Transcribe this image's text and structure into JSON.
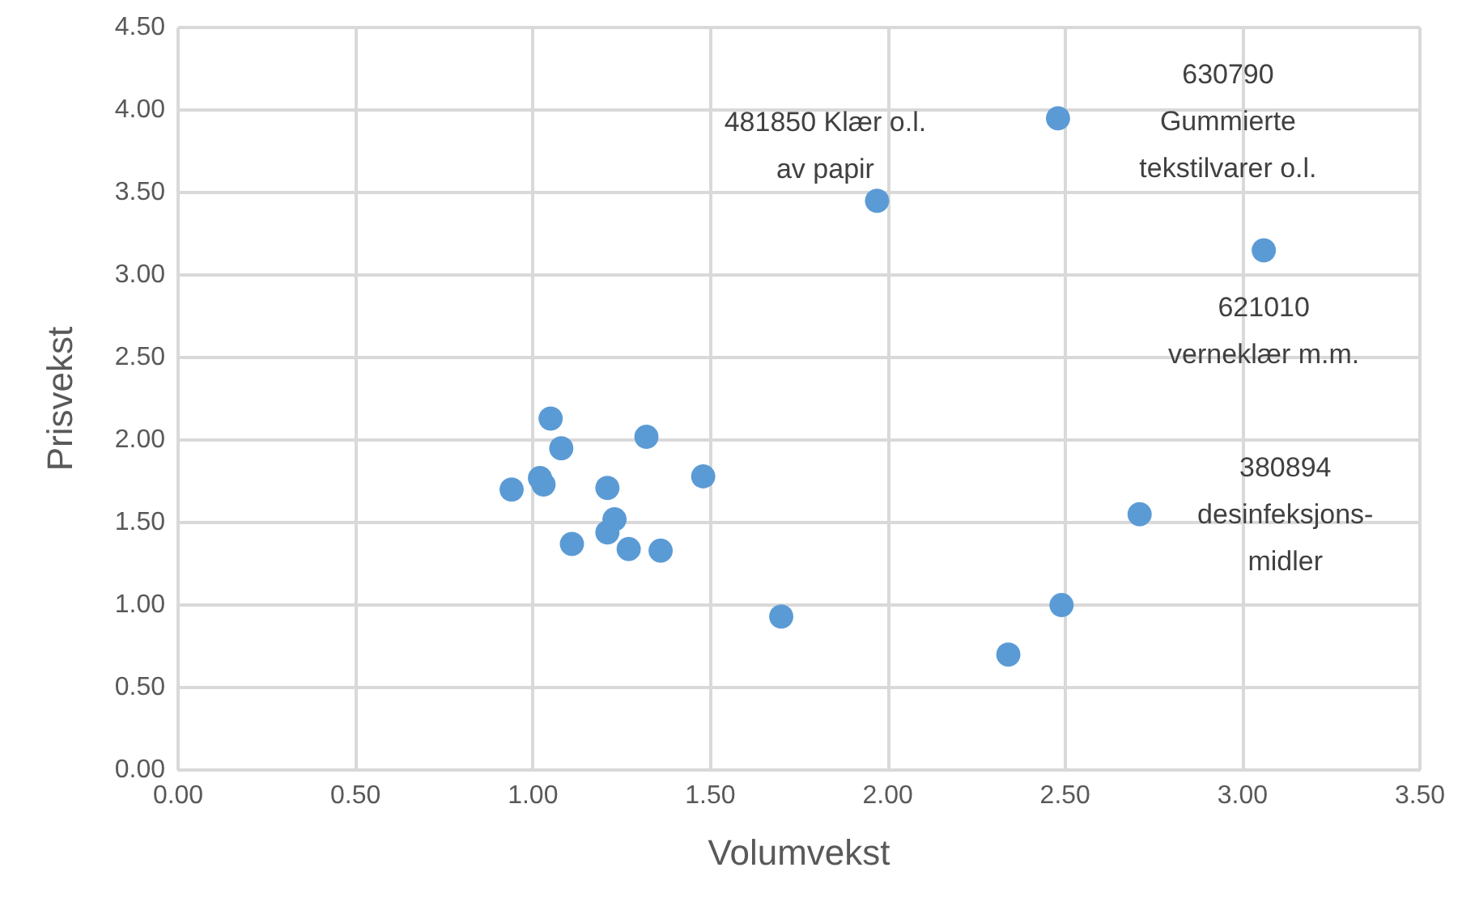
{
  "chart_data": {
    "type": "scatter",
    "xlabel": "Volumvekst",
    "ylabel": "Prisvekst",
    "x": [
      0.94,
      1.02,
      1.03,
      1.05,
      1.08,
      1.11,
      1.21,
      1.21,
      1.23,
      1.27,
      1.32,
      1.36,
      1.48,
      1.7,
      1.97,
      2.34,
      2.48,
      2.49,
      2.71,
      3.06
    ],
    "series": [
      {
        "color": "#5b9bd5",
        "values": [
          1.7,
          1.77,
          1.73,
          2.13,
          1.95,
          1.37,
          1.71,
          1.44,
          1.52,
          1.34,
          2.02,
          1.33,
          1.78,
          0.93,
          3.45,
          0.7,
          3.95,
          1.0,
          1.55,
          3.15
        ]
      }
    ],
    "xlim": [
      0,
      3.5
    ],
    "ylim": [
      0,
      4.5
    ],
    "xticks": [
      {
        "value": 0,
        "label": "0.00"
      },
      {
        "value": 0.5,
        "label": "0.50"
      },
      {
        "value": 1,
        "label": "1.00"
      },
      {
        "value": 1.5,
        "label": "1.50"
      },
      {
        "value": 2,
        "label": "2.00"
      },
      {
        "value": 2.5,
        "label": "2.50"
      },
      {
        "value": 3,
        "label": "3.00"
      },
      {
        "value": 3.5,
        "label": "3.50"
      }
    ],
    "yticks": [
      {
        "value": 0,
        "label": "0.00"
      },
      {
        "value": 0.5,
        "label": "0.50"
      },
      {
        "value": 1,
        "label": "1.00"
      },
      {
        "value": 1.5,
        "label": "1.50"
      },
      {
        "value": 2,
        "label": "2.00"
      },
      {
        "value": 2.5,
        "label": "2.50"
      },
      {
        "value": 3,
        "label": "3.00"
      },
      {
        "value": 3.5,
        "label": "3.50"
      },
      {
        "value": 4,
        "label": "4.00"
      },
      {
        "value": 4.5,
        "label": "4.50"
      }
    ],
    "annotations": [
      {
        "text": "481850 Klær o.l.\nav papir",
        "x": 1.97,
        "y": 3.45
      },
      {
        "text": "630790\nGummierte\ntekstilvarer o.l.",
        "x": 2.48,
        "y": 3.95
      },
      {
        "text": "621010\nverneklær m.m.",
        "x": 3.06,
        "y": 3.15
      },
      {
        "text": "380894\ndesinfeksjons-\nmidler",
        "x": 2.71,
        "y": 1.55
      }
    ],
    "grid": true,
    "marker": "circle"
  }
}
